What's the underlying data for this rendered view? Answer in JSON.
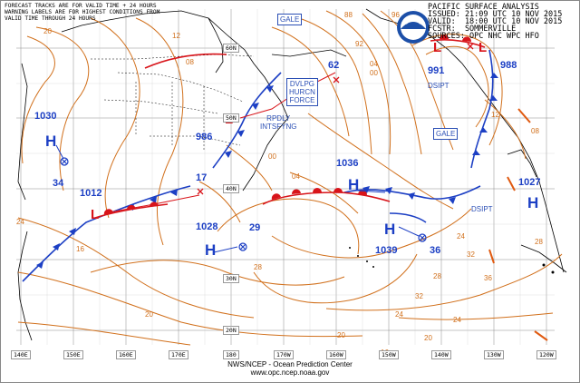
{
  "header": {
    "title": "PACIFIC SURFACE ANALYSIS",
    "issued": "ISSUED: 21:09 UTC 10 NOV 2015",
    "valid": "VALID:  18:00 UTC 10 NOV 2015",
    "forecaster": "FCSTR:  SOMMERVILLE",
    "sources": "SOURCES: OPC NHC WPC HFO"
  },
  "notes": {
    "line1": "FORECAST TRACKS ARE FOR VALID TIME + 24 HOURS",
    "line2": "WARNING LABELS ARE FOR HIGHEST CONDITIONS FROM",
    "line3": "VALID TIME THROUGH 24 HOURS"
  },
  "warnings": {
    "dvlpg_1": "DVLPG",
    "dvlpg_2": "HURCN",
    "dvlpg_3": "FORCE",
    "rpdly_1": "RPDLY",
    "rpdly_2": "INTSFYNG",
    "gale_n": "GALE",
    "gale_e": "GALE",
    "dsipt_e": "DSIPT",
    "dsipt_c": "DSIPT"
  },
  "pressures": {
    "p1030": "1030",
    "p1012": "1012",
    "p1028": "1028",
    "p1036": "1036",
    "p1039": "1039",
    "p1027": "1027",
    "p991": "991",
    "p988": "988",
    "p986": "986",
    "p62": "62",
    "p34": "34",
    "p17": "17",
    "p29": "29",
    "p36": "36"
  },
  "centers": {
    "high": "H",
    "low": "L"
  },
  "isobar_labels": [
    "20",
    "24",
    "16",
    "12",
    "08",
    "04",
    "00",
    "96",
    "92",
    "88",
    "28",
    "32",
    "36",
    "20",
    "24",
    "28",
    "24",
    "20",
    "16",
    "12",
    "08",
    "04",
    "00",
    "20",
    "24",
    "28",
    "32"
  ],
  "longitudes": [
    "140E",
    "150E",
    "160E",
    "170E",
    "180",
    "170W",
    "160W",
    "150W",
    "140W",
    "130W",
    "120W"
  ],
  "latitudes": [
    "60N",
    "50N",
    "40N",
    "30N",
    "20N"
  ],
  "footer": {
    "agency": "NWS/NCEP - Ocean Prediction Center",
    "url": "www.opc.ncep.noaa.gov"
  },
  "colors": {
    "isobar": "#d1701c",
    "front_cold": "#1c3fc4",
    "front_warm": "#d8141a",
    "high": "#1c3fc4",
    "low": "#d8141a",
    "land": "#000000"
  }
}
